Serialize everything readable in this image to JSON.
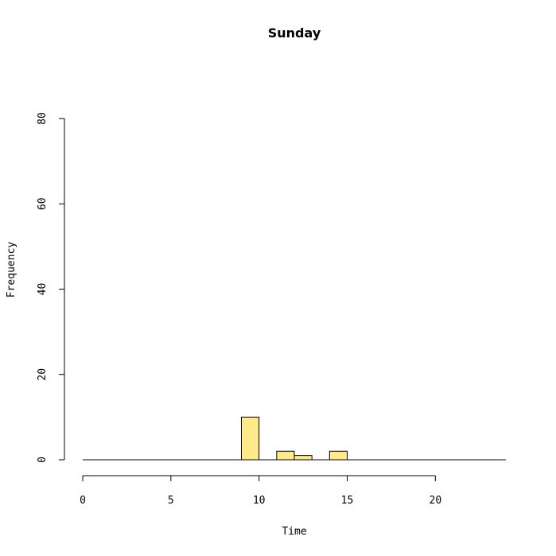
{
  "chart_data": {
    "type": "bar",
    "title": "Sunday",
    "xlabel": "Time",
    "ylabel": "Frequency",
    "bin_width": 1,
    "x_range": [
      0,
      24
    ],
    "xlim": [
      0,
      24
    ],
    "ylim": [
      0,
      80
    ],
    "x_ticks": [
      0,
      5,
      10,
      15,
      20
    ],
    "y_ticks": [
      0,
      20,
      40,
      60,
      80
    ],
    "bins": [
      {
        "start": 9,
        "end": 10,
        "value": 10
      },
      {
        "start": 11,
        "end": 12,
        "value": 2
      },
      {
        "start": 12,
        "end": 13,
        "value": 1
      },
      {
        "start": 14,
        "end": 15,
        "value": 2
      }
    ],
    "bar_color": "#FFEA8A",
    "grid": false,
    "legend": "none"
  }
}
